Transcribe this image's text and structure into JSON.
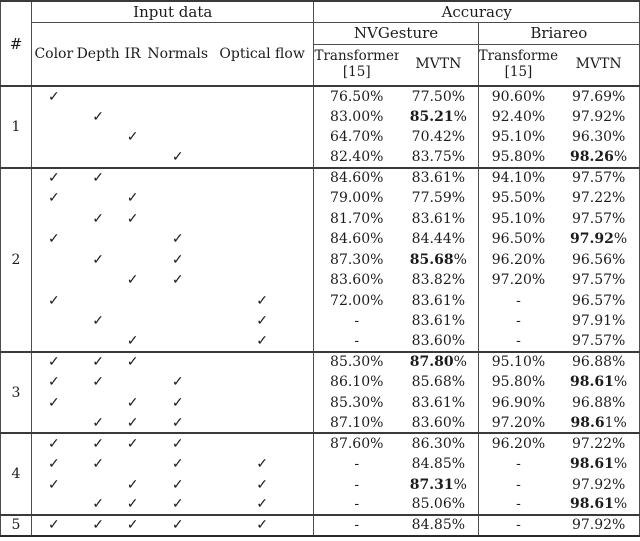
{
  "table": {
    "check_glyph": "✓",
    "header": {
      "hash_label": "#",
      "input_data_label": "Input data",
      "accuracy_label": "Accuracy",
      "dataset_labels": [
        "NVGesture",
        "Briareo"
      ],
      "modality_labels": [
        "Color",
        "Depth",
        "IR",
        "Normals",
        "Optical flow"
      ],
      "transformer_label": "Transformer",
      "transformer_ref": "[15]",
      "mvtn_label": "MVTN"
    },
    "groups": [
      {
        "id": "1",
        "rows": [
          {
            "checks": [
              1,
              0,
              0,
              0,
              0
            ],
            "cells": [
              {
                "v": "76.50%"
              },
              {
                "v": "77.50%"
              },
              {
                "v": "90.60%"
              },
              {
                "v": "97.69%"
              }
            ]
          },
          {
            "checks": [
              0,
              1,
              0,
              0,
              0
            ],
            "cells": [
              {
                "v": "83.00%"
              },
              {
                "v": "85.21%",
                "b": "85.21"
              },
              {
                "v": "92.40%"
              },
              {
                "v": "97.92%"
              }
            ]
          },
          {
            "checks": [
              0,
              0,
              1,
              0,
              0
            ],
            "cells": [
              {
                "v": "64.70%"
              },
              {
                "v": "70.42%"
              },
              {
                "v": "95.10%"
              },
              {
                "v": "96.30%"
              }
            ]
          },
          {
            "checks": [
              0,
              0,
              0,
              1,
              0
            ],
            "cells": [
              {
                "v": "82.40%"
              },
              {
                "v": "83.75%"
              },
              {
                "v": "95.80%"
              },
              {
                "v": "98.26%",
                "b": "98.26"
              }
            ]
          }
        ]
      },
      {
        "id": "2",
        "rows": [
          {
            "checks": [
              1,
              1,
              0,
              0,
              0
            ],
            "cells": [
              {
                "v": "84.60%"
              },
              {
                "v": "83.61%"
              },
              {
                "v": "94.10%"
              },
              {
                "v": "97.57%"
              }
            ]
          },
          {
            "checks": [
              1,
              0,
              1,
              0,
              0
            ],
            "cells": [
              {
                "v": "79.00%"
              },
              {
                "v": "77.59%"
              },
              {
                "v": "95.50%"
              },
              {
                "v": "97.22%"
              }
            ]
          },
          {
            "checks": [
              0,
              1,
              1,
              0,
              0
            ],
            "cells": [
              {
                "v": "81.70%"
              },
              {
                "v": "83.61%"
              },
              {
                "v": "95.10%"
              },
              {
                "v": "97.57%"
              }
            ]
          },
          {
            "checks": [
              1,
              0,
              0,
              1,
              0
            ],
            "cells": [
              {
                "v": "84.60%"
              },
              {
                "v": "84.44%"
              },
              {
                "v": "96.50%"
              },
              {
                "v": "97.92%",
                "b": "97.92"
              }
            ]
          },
          {
            "checks": [
              0,
              1,
              0,
              1,
              0
            ],
            "cells": [
              {
                "v": "87.30%"
              },
              {
                "v": "85.68%",
                "b": "85.68"
              },
              {
                "v": "96.20%"
              },
              {
                "v": "96.56%"
              }
            ]
          },
          {
            "checks": [
              0,
              0,
              1,
              1,
              0
            ],
            "cells": [
              {
                "v": "83.60%"
              },
              {
                "v": "83.82%"
              },
              {
                "v": "97.20%"
              },
              {
                "v": "97.57%"
              }
            ]
          },
          {
            "checks": [
              1,
              0,
              0,
              0,
              1
            ],
            "cells": [
              {
                "v": "72.00%"
              },
              {
                "v": "83.61%"
              },
              {
                "v": "-"
              },
              {
                "v": "96.57%"
              }
            ]
          },
          {
            "checks": [
              0,
              1,
              0,
              0,
              1
            ],
            "cells": [
              {
                "v": "-"
              },
              {
                "v": "83.61%"
              },
              {
                "v": "-"
              },
              {
                "v": "97.91%"
              }
            ]
          },
          {
            "checks": [
              0,
              0,
              1,
              0,
              1
            ],
            "cells": [
              {
                "v": "-"
              },
              {
                "v": "83.60%"
              },
              {
                "v": "-"
              },
              {
                "v": "97.57%"
              }
            ]
          }
        ]
      },
      {
        "id": "3",
        "rows": [
          {
            "checks": [
              1,
              1,
              1,
              0,
              0
            ],
            "cells": [
              {
                "v": "85.30%"
              },
              {
                "v": "87.80%",
                "b": "87.80"
              },
              {
                "v": "95.10%"
              },
              {
                "v": "96.88%"
              }
            ]
          },
          {
            "checks": [
              1,
              1,
              0,
              1,
              0
            ],
            "cells": [
              {
                "v": "86.10%"
              },
              {
                "v": "85.68%"
              },
              {
                "v": "95.80%"
              },
              {
                "v": "98.61%",
                "b": "98.61"
              }
            ]
          },
          {
            "checks": [
              1,
              0,
              1,
              1,
              0
            ],
            "cells": [
              {
                "v": "85.30%"
              },
              {
                "v": "83.61%"
              },
              {
                "v": "96.90%"
              },
              {
                "v": "96.88%"
              }
            ]
          },
          {
            "checks": [
              0,
              1,
              1,
              1,
              0
            ],
            "cells": [
              {
                "v": "87.10%"
              },
              {
                "v": "83.60%"
              },
              {
                "v": "97.20%"
              },
              {
                "v": "98.61%",
                "b": "98.6"
              }
            ]
          }
        ]
      },
      {
        "id": "4",
        "rows": [
          {
            "checks": [
              1,
              1,
              1,
              1,
              0
            ],
            "cells": [
              {
                "v": "87.60%"
              },
              {
                "v": "86.30%"
              },
              {
                "v": "96.20%"
              },
              {
                "v": "97.22%"
              }
            ]
          },
          {
            "checks": [
              1,
              1,
              0,
              1,
              1
            ],
            "cells": [
              {
                "v": "-"
              },
              {
                "v": "84.85%"
              },
              {
                "v": "-"
              },
              {
                "v": "98.61%",
                "b": "98.61"
              }
            ]
          },
          {
            "checks": [
              1,
              0,
              1,
              1,
              1
            ],
            "cells": [
              {
                "v": "-"
              },
              {
                "v": "87.31%",
                "b": "87.31"
              },
              {
                "v": "-"
              },
              {
                "v": "97.92%"
              }
            ]
          },
          {
            "checks": [
              0,
              1,
              1,
              1,
              1
            ],
            "cells": [
              {
                "v": "-"
              },
              {
                "v": "85.06%"
              },
              {
                "v": "-"
              },
              {
                "v": "98.61%",
                "b": "98.61"
              }
            ]
          }
        ]
      },
      {
        "id": "5",
        "rows": [
          {
            "checks": [
              1,
              1,
              1,
              1,
              1
            ],
            "cells": [
              {
                "v": "-"
              },
              {
                "v": "84.85%"
              },
              {
                "v": "-"
              },
              {
                "v": "97.92%"
              }
            ]
          }
        ]
      }
    ]
  }
}
